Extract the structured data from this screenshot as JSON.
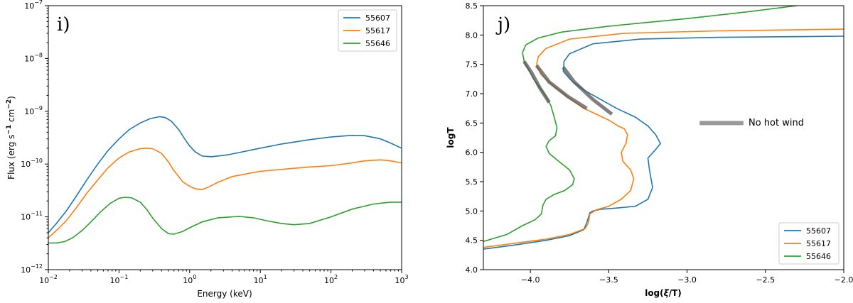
{
  "chart_data": [
    {
      "type": "line",
      "panel_label": "i)",
      "xlabel": "Energy (keV)",
      "ylabel_parts": [
        "Flux (erg s",
        "−1",
        " cm",
        "−2",
        ")"
      ],
      "xscale": "log",
      "yscale": "log",
      "xlim": [
        0.01,
        1000
      ],
      "ylim": [
        1e-12,
        1e-07
      ],
      "xticks": [
        {
          "value": 0.01,
          "base": "10",
          "exp": "−2"
        },
        {
          "value": 0.1,
          "base": "10",
          "exp": "−1"
        },
        {
          "value": 1,
          "base": "10",
          "exp": "0"
        },
        {
          "value": 10,
          "base": "10",
          "exp": "1"
        },
        {
          "value": 100,
          "base": "10",
          "exp": "2"
        },
        {
          "value": 1000,
          "base": "10",
          "exp": "3"
        }
      ],
      "yticks": [
        {
          "value": 1e-12,
          "base": "10",
          "exp": "−12"
        },
        {
          "value": 1e-11,
          "base": "10",
          "exp": "−11"
        },
        {
          "value": 1e-10,
          "base": "10",
          "exp": "−10"
        },
        {
          "value": 1e-09,
          "base": "10",
          "exp": "−9"
        },
        {
          "value": 1e-08,
          "base": "10",
          "exp": "−8"
        },
        {
          "value": 1e-07,
          "base": "10",
          "exp": "−7"
        }
      ],
      "legend_position": "top-right",
      "series": [
        {
          "name": "55607",
          "color": "#1f77b4",
          "x": [
            0.01,
            0.013,
            0.018,
            0.025,
            0.035,
            0.05,
            0.07,
            0.1,
            0.14,
            0.2,
            0.28,
            0.38,
            0.45,
            0.55,
            0.7,
            0.85,
            1.0,
            1.2,
            1.5,
            2.0,
            2.5,
            3.5,
            5,
            10,
            20,
            50,
            100,
            200,
            300,
            500,
            700,
            1000
          ],
          "y": [
            5e-12,
            7.5e-12,
            1.3e-11,
            2.5e-11,
            5e-11,
            1e-10,
            1.8e-10,
            3e-10,
            4.5e-10,
            6e-10,
            7.3e-10,
            7.9e-10,
            7.6e-10,
            6.5e-10,
            4.5e-10,
            3e-10,
            2.2e-10,
            1.7e-10,
            1.42e-10,
            1.38e-10,
            1.42e-10,
            1.5e-10,
            1.65e-10,
            2e-10,
            2.4e-10,
            2.9e-10,
            3.25e-10,
            3.5e-10,
            3.45e-10,
            3e-10,
            2.5e-10,
            2e-10
          ]
        },
        {
          "name": "55617",
          "color": "#ff7f0e",
          "x": [
            0.01,
            0.013,
            0.018,
            0.025,
            0.035,
            0.05,
            0.07,
            0.1,
            0.14,
            0.2,
            0.25,
            0.3,
            0.4,
            0.5,
            0.6,
            0.8,
            1.0,
            1.2,
            1.5,
            1.8,
            2.5,
            4,
            10,
            30,
            50,
            100,
            200,
            300,
            500,
            700,
            1000
          ],
          "y": [
            4e-12,
            5.5e-12,
            8.5e-12,
            1.5e-11,
            2.8e-11,
            5e-11,
            8.5e-11,
            1.3e-10,
            1.7e-10,
            1.95e-10,
            2e-10,
            1.95e-10,
            1.6e-10,
            1.1e-10,
            7.5e-11,
            4.6e-11,
            3.8e-11,
            3.4e-11,
            3.3e-11,
            3.6e-11,
            4.5e-11,
            5.8e-11,
            7.3e-11,
            8.3e-11,
            8.8e-11,
            9.3e-11,
            1.05e-10,
            1.15e-10,
            1.2e-10,
            1.15e-10,
            1.05e-10
          ]
        },
        {
          "name": "55646",
          "color": "#2ca02c",
          "x": [
            0.01,
            0.013,
            0.017,
            0.022,
            0.03,
            0.04,
            0.055,
            0.075,
            0.1,
            0.12,
            0.15,
            0.2,
            0.25,
            0.3,
            0.4,
            0.5,
            0.6,
            0.8,
            1.0,
            1.5,
            2.5,
            5,
            8,
            12,
            20,
            30,
            50,
            100,
            200,
            400,
            700,
            1000
          ],
          "y": [
            3.2e-12,
            3.2e-12,
            3.4e-12,
            4e-12,
            5.5e-12,
            8e-12,
            1.25e-11,
            1.8e-11,
            2.25e-11,
            2.35e-11,
            2.3e-11,
            1.9e-11,
            1.35e-11,
            9.5e-12,
            6e-12,
            4.8e-12,
            4.7e-12,
            5.3e-12,
            6.2e-12,
            8e-12,
            9.6e-12,
            1.02e-11,
            9.6e-12,
            8.5e-12,
            7.5e-12,
            7.1e-12,
            7.5e-12,
            1e-11,
            1.4e-11,
            1.75e-11,
            1.9e-11,
            1.9e-11
          ]
        }
      ]
    },
    {
      "type": "line",
      "panel_label": "j)",
      "xlabel_parts": [
        "log(",
        "ξ",
        "/T)"
      ],
      "ylabel": "logT",
      "xlim": [
        -4.3,
        -2.0
      ],
      "ylim": [
        4.0,
        8.5
      ],
      "xticks": [
        {
          "value": -4.0,
          "label": "−4.0"
        },
        {
          "value": -3.5,
          "label": "−3.5"
        },
        {
          "value": -3.0,
          "label": "−3.0"
        },
        {
          "value": -2.5,
          "label": "−2.5"
        },
        {
          "value": -2.0,
          "label": "−2.0"
        }
      ],
      "yticks": [
        {
          "value": 4.0,
          "label": "4.0"
        },
        {
          "value": 4.5,
          "label": "4.5"
        },
        {
          "value": 5.0,
          "label": "5.0"
        },
        {
          "value": 5.5,
          "label": "5.5"
        },
        {
          "value": 6.0,
          "label": "6.0"
        },
        {
          "value": 6.5,
          "label": "6.5"
        },
        {
          "value": 7.0,
          "label": "7.0"
        },
        {
          "value": 7.5,
          "label": "7.5"
        },
        {
          "value": 8.0,
          "label": "8.0"
        },
        {
          "value": 8.5,
          "label": "8.5"
        }
      ],
      "legend_position": "lower-right",
      "annotation": {
        "text": "No hot wind",
        "color": "#999999",
        "line_x": [
          -2.92,
          -2.64
        ],
        "line_y": [
          6.5,
          6.5
        ]
      },
      "series": [
        {
          "name": "55607",
          "color": "#1f77b4",
          "x": [
            -4.3,
            -4.1,
            -3.9,
            -3.75,
            -3.66,
            -3.64,
            -3.62,
            -3.6,
            -3.55,
            -3.45,
            -3.33,
            -3.25,
            -3.22,
            -3.24,
            -3.25,
            -3.2,
            -3.17,
            -3.2,
            -3.25,
            -3.33,
            -3.45,
            -3.55,
            -3.65,
            -3.73,
            -3.79,
            -3.785,
            -3.75,
            -3.6,
            -3.3,
            -2.8,
            -2.4,
            -2.0
          ],
          "y": [
            4.35,
            4.42,
            4.5,
            4.58,
            4.68,
            4.8,
            4.97,
            5.0,
            5.03,
            5.05,
            5.08,
            5.2,
            5.4,
            5.7,
            5.9,
            6.05,
            6.15,
            6.3,
            6.45,
            6.6,
            6.75,
            6.9,
            7.05,
            7.2,
            7.38,
            7.55,
            7.68,
            7.85,
            7.93,
            7.96,
            7.97,
            7.98
          ]
        },
        {
          "name": "55617",
          "color": "#ff7f0e",
          "x": [
            -4.3,
            -4.1,
            -3.9,
            -3.75,
            -3.65,
            -3.63,
            -3.62,
            -3.58,
            -3.5,
            -3.42,
            -3.36,
            -3.34,
            -3.36,
            -3.41,
            -3.42,
            -3.39,
            -3.38,
            -3.4,
            -3.44,
            -3.5,
            -3.58,
            -3.66,
            -3.73,
            -3.8,
            -3.87,
            -3.93,
            -3.96,
            -3.95,
            -3.9,
            -3.75,
            -3.4,
            -2.8,
            -2.0
          ],
          "y": [
            4.38,
            4.45,
            4.52,
            4.6,
            4.7,
            4.8,
            4.95,
            5.02,
            5.08,
            5.2,
            5.35,
            5.55,
            5.7,
            5.85,
            6.0,
            6.15,
            6.3,
            6.4,
            6.45,
            6.55,
            6.65,
            6.75,
            6.88,
            7.02,
            7.17,
            7.32,
            7.48,
            7.63,
            7.77,
            7.93,
            8.03,
            8.07,
            8.1
          ]
        },
        {
          "name": "55646",
          "color": "#2ca02c",
          "x": [
            -4.3,
            -4.15,
            -4.05,
            -3.97,
            -3.93,
            -3.92,
            -3.9,
            -3.85,
            -3.78,
            -3.73,
            -3.72,
            -3.75,
            -3.82,
            -3.88,
            -3.9,
            -3.88,
            -3.84,
            -3.83,
            -3.85,
            -3.87,
            -3.9,
            -3.94,
            -3.98,
            -4.01,
            -4.04,
            -4.05,
            -4.03,
            -3.95,
            -3.8,
            -3.5,
            -3.0,
            -2.6,
            -2.3
          ],
          "y": [
            4.48,
            4.6,
            4.75,
            4.85,
            4.95,
            5.1,
            5.2,
            5.28,
            5.35,
            5.45,
            5.55,
            5.7,
            5.85,
            5.98,
            6.1,
            6.2,
            6.28,
            6.42,
            6.62,
            6.8,
            6.95,
            7.1,
            7.25,
            7.4,
            7.55,
            7.7,
            7.83,
            7.95,
            8.05,
            8.15,
            8.28,
            8.4,
            8.5
          ]
        }
      ],
      "no_hot_wind_segments": [
        {
          "x": [
            -3.79,
            -3.72,
            -3.6,
            -3.48
          ],
          "y": [
            7.45,
            7.2,
            6.9,
            6.65
          ]
        },
        {
          "x": [
            -3.96,
            -3.88,
            -3.76,
            -3.64
          ],
          "y": [
            7.48,
            7.2,
            6.95,
            6.75
          ]
        },
        {
          "x": [
            -4.04,
            -3.99,
            -3.94,
            -3.88
          ],
          "y": [
            7.55,
            7.35,
            7.1,
            6.85
          ]
        }
      ]
    }
  ]
}
